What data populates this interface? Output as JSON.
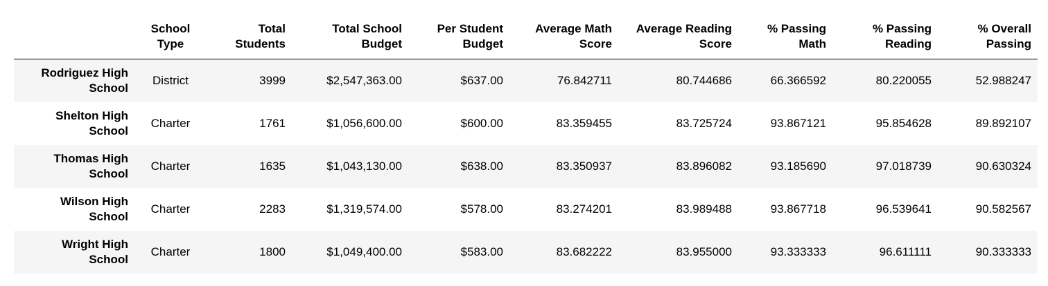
{
  "table": {
    "columns": [
      {
        "line1": "School",
        "line2": "Type"
      },
      {
        "line1": "Total",
        "line2": "Students"
      },
      {
        "line1": "Total School",
        "line2": "Budget"
      },
      {
        "line1": "Per Student",
        "line2": "Budget"
      },
      {
        "line1": "Average Math",
        "line2": "Score"
      },
      {
        "line1": "Average Reading",
        "line2": "Score"
      },
      {
        "line1": "% Passing",
        "line2": "Math"
      },
      {
        "line1": "% Passing",
        "line2": "Reading"
      },
      {
        "line1": "% Overall",
        "line2": "Passing"
      }
    ],
    "rows": [
      {
        "name_line1": "Rodriguez High",
        "name_line2": "School",
        "cells": [
          "District",
          "3999",
          "$2,547,363.00",
          "$637.00",
          "76.842711",
          "80.744686",
          "66.366592",
          "80.220055",
          "52.988247"
        ]
      },
      {
        "name_line1": "Shelton High",
        "name_line2": "School",
        "cells": [
          "Charter",
          "1761",
          "$1,056,600.00",
          "$600.00",
          "83.359455",
          "83.725724",
          "93.867121",
          "95.854628",
          "89.892107"
        ]
      },
      {
        "name_line1": "Thomas High",
        "name_line2": "School",
        "cells": [
          "Charter",
          "1635",
          "$1,043,130.00",
          "$638.00",
          "83.350937",
          "83.896082",
          "93.185690",
          "97.018739",
          "90.630324"
        ]
      },
      {
        "name_line1": "Wilson High",
        "name_line2": "School",
        "cells": [
          "Charter",
          "2283",
          "$1,319,574.00",
          "$578.00",
          "83.274201",
          "83.989488",
          "93.867718",
          "96.539641",
          "90.582567"
        ]
      },
      {
        "name_line1": "Wright High",
        "name_line2": "School",
        "cells": [
          "Charter",
          "1800",
          "$1,049,400.00",
          "$583.00",
          "83.682222",
          "83.955000",
          "93.333333",
          "96.611111",
          "90.333333"
        ]
      }
    ]
  },
  "colors": {
    "stripe": "#f5f5f5",
    "text": "#000000",
    "header_rule": "#000000"
  }
}
